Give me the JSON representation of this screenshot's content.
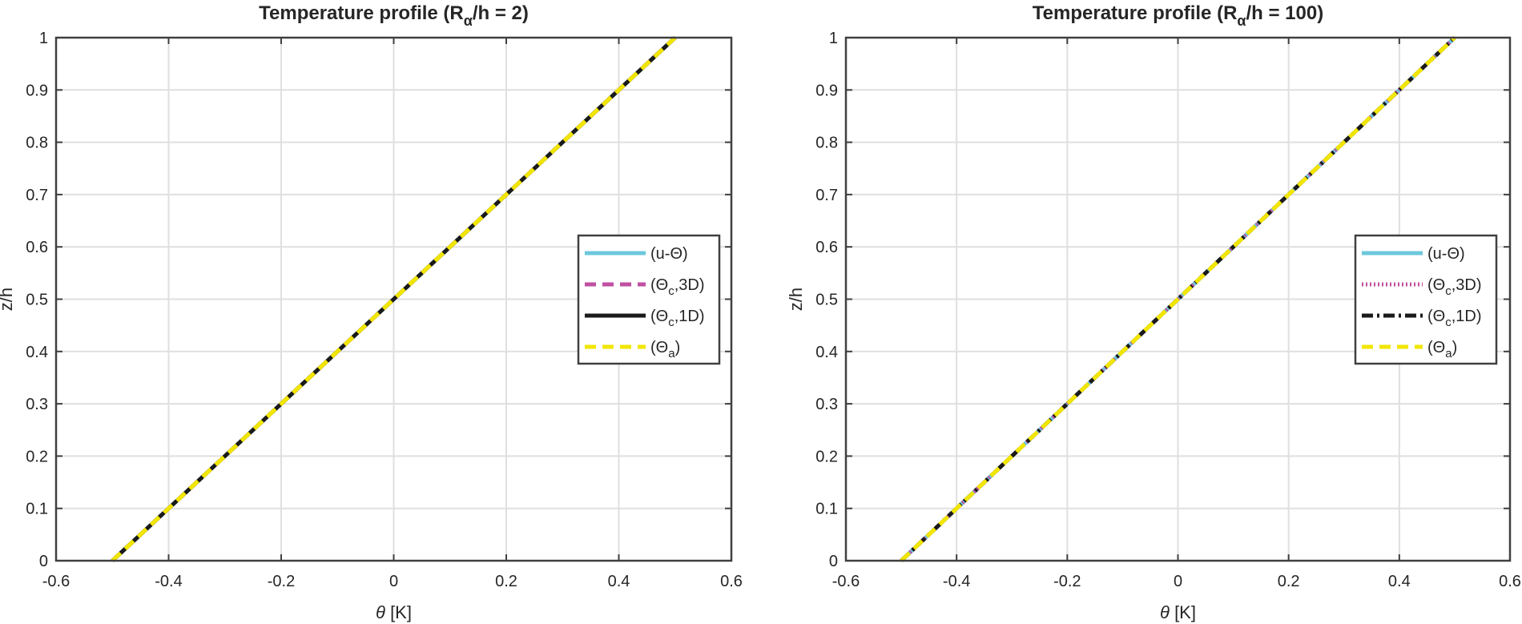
{
  "chart_data": [
    {
      "type": "line",
      "title": "Temperature profile (R",
      "title_sub": "α",
      "title_tail": "/h = 2)",
      "xlabel_symbol": "θ",
      "xlabel_unit": "[K]",
      "ylabel": "z/h",
      "xlim": [
        -0.6,
        0.6
      ],
      "ylim": [
        0,
        1
      ],
      "xticks": [
        -0.6,
        -0.4,
        -0.2,
        0,
        0.2,
        0.4,
        0.6
      ],
      "xtick_labels": [
        "-0.6",
        "-0.4",
        "-0.2",
        "0",
        "0.2",
        "0.4",
        "0.6"
      ],
      "yticks": [
        0,
        0.1,
        0.2,
        0.3,
        0.4,
        0.5,
        0.6,
        0.7,
        0.8,
        0.9,
        1
      ],
      "ytick_labels": [
        "0",
        "0.1",
        "0.2",
        "0.3",
        "0.4",
        "0.5",
        "0.6",
        "0.7",
        "0.8",
        "0.9",
        "1"
      ],
      "grid": true,
      "legend_position": "right",
      "series": [
        {
          "name": "(u-Θ)",
          "base": "(u-Θ)",
          "sub": "",
          "tail": "",
          "color": "#6cc8dc",
          "style": "solid",
          "x": [
            -0.5,
            0.5
          ],
          "y": [
            0,
            1
          ]
        },
        {
          "name": "(Θc,3D)",
          "base": "(Θ",
          "sub": "c",
          "tail": ",3D)",
          "color": "#c050a0",
          "style": "dashed",
          "x": [
            -0.5,
            0.5
          ],
          "y": [
            0,
            1
          ]
        },
        {
          "name": "(Θc,1D)",
          "base": "(Θ",
          "sub": "c",
          "tail": ",1D)",
          "color": "#1a1a1a",
          "style": "solid",
          "x": [
            -0.5,
            0.5
          ],
          "y": [
            0,
            1
          ]
        },
        {
          "name": "(Θa)",
          "base": "(Θ",
          "sub": "a",
          "tail": ")",
          "color": "#f2e600",
          "style": "dashed",
          "x": [
            -0.5,
            0.5
          ],
          "y": [
            0,
            1
          ]
        }
      ]
    },
    {
      "type": "line",
      "title": "Temperature profile (R",
      "title_sub": "α",
      "title_tail": "/h = 100)",
      "xlabel_symbol": "θ",
      "xlabel_unit": "[K]",
      "ylabel": "z/h",
      "xlim": [
        -0.6,
        0.6
      ],
      "ylim": [
        0,
        1
      ],
      "xticks": [
        -0.6,
        -0.4,
        -0.2,
        0,
        0.2,
        0.4,
        0.6
      ],
      "xtick_labels": [
        "-0.6",
        "-0.4",
        "-0.2",
        "0",
        "0.2",
        "0.4",
        "0.6"
      ],
      "yticks": [
        0,
        0.1,
        0.2,
        0.3,
        0.4,
        0.5,
        0.6,
        0.7,
        0.8,
        0.9,
        1
      ],
      "ytick_labels": [
        "0",
        "0.1",
        "0.2",
        "0.3",
        "0.4",
        "0.5",
        "0.6",
        "0.7",
        "0.8",
        "0.9",
        "1"
      ],
      "grid": true,
      "legend_position": "right",
      "series": [
        {
          "name": "(u-Θ)",
          "base": "(u-Θ)",
          "sub": "",
          "tail": "",
          "color": "#6cc8dc",
          "style": "solid",
          "x": [
            -0.5,
            0.5
          ],
          "y": [
            0,
            1
          ]
        },
        {
          "name": "(Θc,3D)",
          "base": "(Θ",
          "sub": "c",
          "tail": ",3D)",
          "color": "#c050a0",
          "style": "dotted",
          "x": [
            -0.5,
            0.5
          ],
          "y": [
            0,
            1
          ]
        },
        {
          "name": "(Θc,1D)",
          "base": "(Θ",
          "sub": "c",
          "tail": ",1D)",
          "color": "#1a1a1a",
          "style": "dashdot",
          "x": [
            -0.5,
            0.5
          ],
          "y": [
            0,
            1
          ]
        },
        {
          "name": "(Θa)",
          "base": "(Θ",
          "sub": "a",
          "tail": ")",
          "color": "#f2e600",
          "style": "dashed",
          "x": [
            -0.5,
            0.5
          ],
          "y": [
            0,
            1
          ]
        }
      ]
    }
  ]
}
